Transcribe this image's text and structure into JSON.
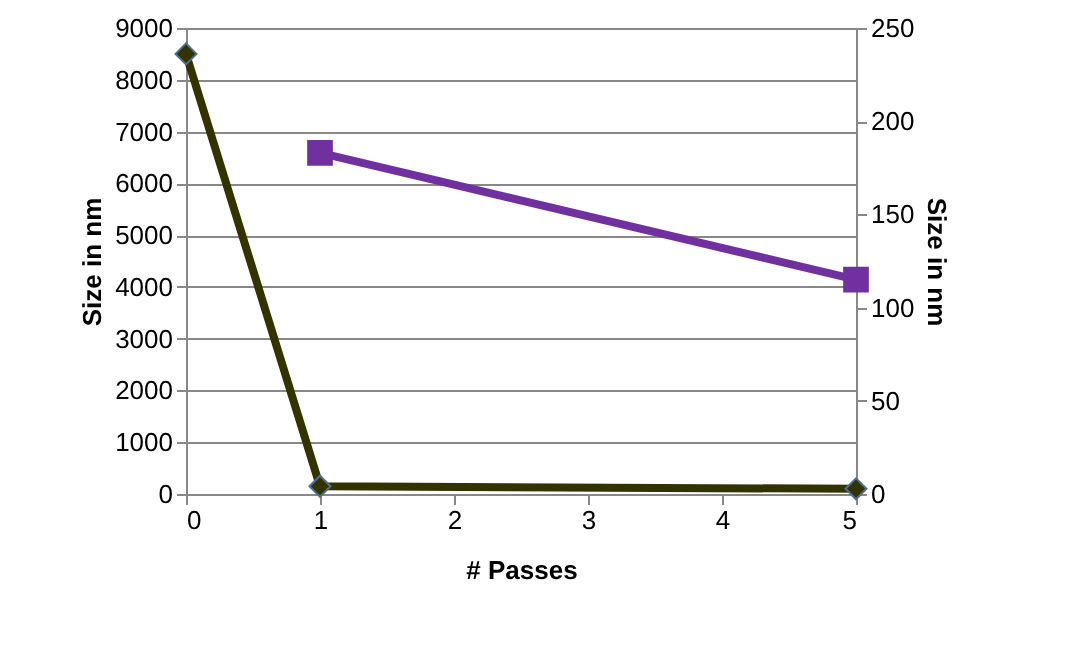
{
  "chart_data": {
    "type": "line",
    "xlabel": "# Passes",
    "ylabel": "Size in nm",
    "y2label": "Size in nm",
    "xlim": [
      0,
      5
    ],
    "xticks": [
      0,
      1,
      2,
      3,
      4,
      5
    ],
    "ylim": [
      0,
      9000
    ],
    "yticks": [
      0,
      1000,
      2000,
      3000,
      4000,
      5000,
      6000,
      7000,
      8000,
      9000
    ],
    "y2lim": [
      0,
      250
    ],
    "y2ticks": [
      0,
      50,
      100,
      150,
      200,
      250
    ],
    "grid": "y",
    "line_style": "solid",
    "series": [
      {
        "color": "#333300",
        "marker": "diamond",
        "x": [
          0,
          1,
          5
        ],
        "values": [
          8500,
          150,
          100
        ]
      },
      {
        "color": "#7030a0",
        "marker": "square",
        "axis": "y2",
        "x": [
          1,
          5
        ],
        "values": [
          183,
          115
        ]
      }
    ]
  }
}
